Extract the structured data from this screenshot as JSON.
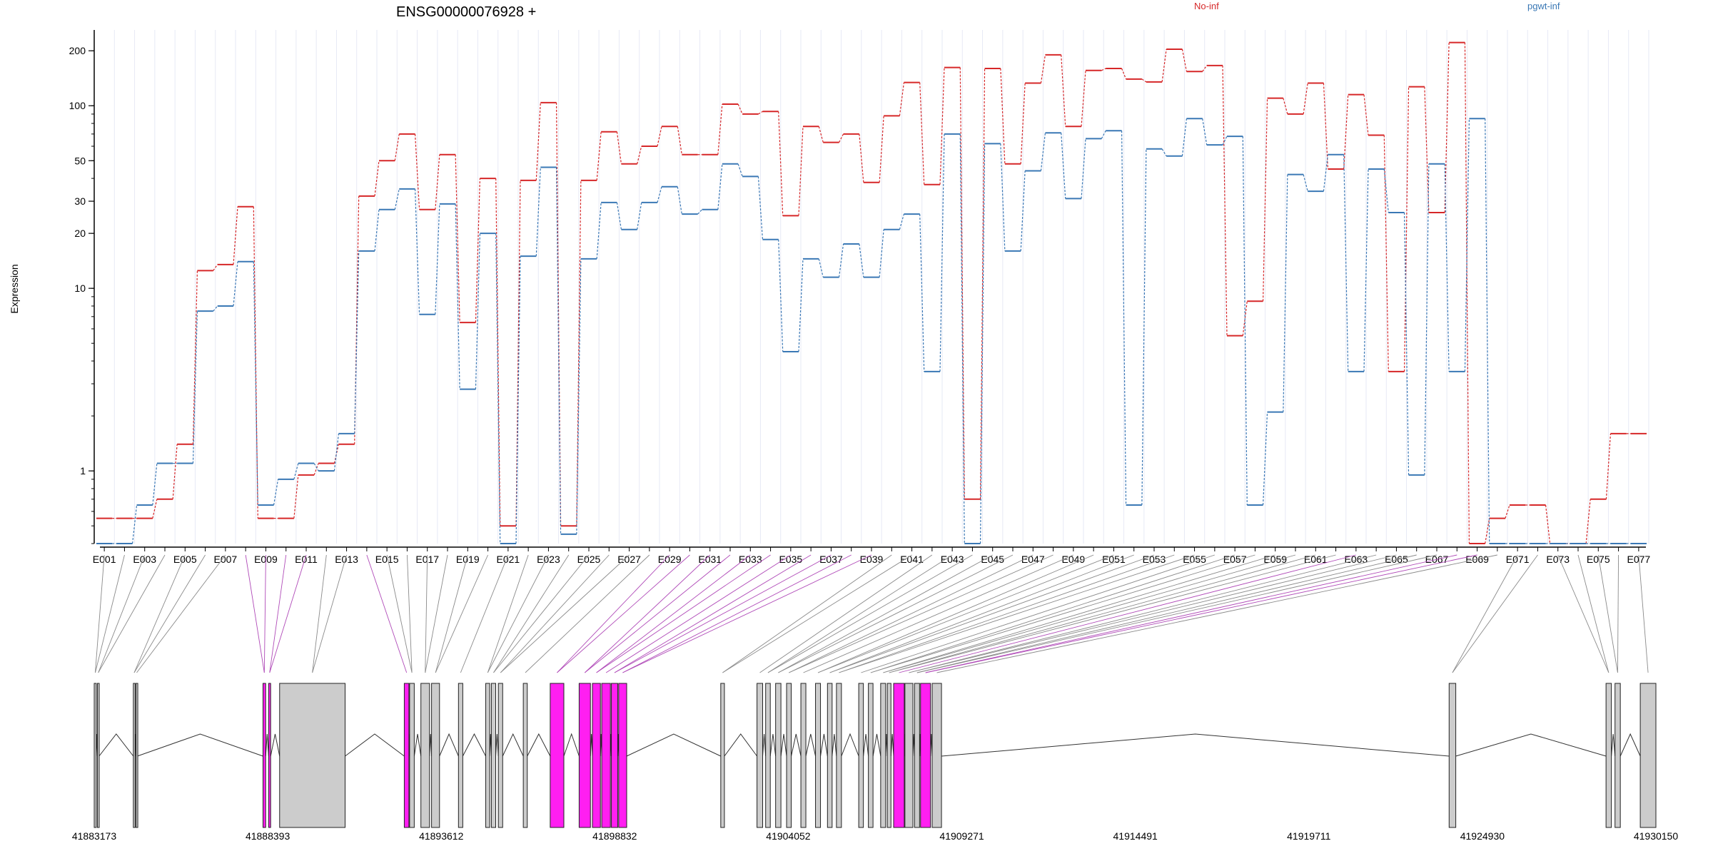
{
  "chart_data": {
    "type": "line",
    "title": "ENSG00000076928 +",
    "ylabel": "Expression",
    "yscale": "log",
    "ylim": [
      0.4,
      260
    ],
    "yticks": [
      1,
      10,
      20,
      30,
      50,
      100,
      200
    ],
    "grid": "vertical",
    "legend_position": "top",
    "categories": [
      "E001",
      "E002",
      "E003",
      "E004",
      "E005",
      "E006",
      "E007",
      "E008",
      "E009",
      "E010",
      "E011",
      "E012",
      "E013",
      "E014",
      "E015",
      "E016",
      "E017",
      "E018",
      "E019",
      "E020",
      "E021",
      "E022",
      "E023",
      "E024",
      "E025",
      "E026",
      "E027",
      "E028",
      "E029",
      "E030",
      "E031",
      "E032",
      "E033",
      "E034",
      "E035",
      "E036",
      "E037",
      "E038",
      "E039",
      "E040",
      "E041",
      "E042",
      "E043",
      "E044",
      "E045",
      "E046",
      "E047",
      "E048",
      "E049",
      "E050",
      "E051",
      "E052",
      "E053",
      "E054",
      "E055",
      "E056",
      "E057",
      "E058",
      "E059",
      "E060",
      "E061",
      "E062",
      "E063",
      "E064",
      "E065",
      "E066",
      "E067",
      "E068",
      "E069",
      "E070",
      "E071",
      "E072",
      "E073",
      "E074",
      "E075",
      "E076",
      "E077"
    ],
    "tick_labels": [
      "E001",
      "E003",
      "E005",
      "E007",
      "E009",
      "E011",
      "E013",
      "E015",
      "E017",
      "E019",
      "E021",
      "E023",
      "E025",
      "E027",
      "E029",
      "E031",
      "E033",
      "E035",
      "E037",
      "E039",
      "E041",
      "E043",
      "E045",
      "E047",
      "E049",
      "E051",
      "E053",
      "E055",
      "E057",
      "E059",
      "E061",
      "E063",
      "E065",
      "E067",
      "E069",
      "E071",
      "E073",
      "E075",
      "E077"
    ],
    "series": [
      {
        "name": "No-inf",
        "color": "#d62728",
        "values": [
          0.55,
          0.55,
          0.55,
          0.7,
          1.4,
          12.5,
          13.5,
          28,
          0.55,
          0.55,
          0.95,
          1.1,
          1.4,
          32,
          50,
          70,
          27,
          54,
          6.5,
          40,
          0.5,
          39,
          104,
          0.5,
          39,
          72,
          48,
          60,
          77,
          54,
          54,
          102,
          90,
          93,
          25,
          77,
          63,
          70,
          38,
          88,
          134,
          37,
          162,
          0.7,
          160,
          48,
          133,
          190,
          77,
          156,
          160,
          140,
          135,
          204,
          154,
          166,
          5.5,
          8.5,
          110,
          90,
          133,
          45,
          115,
          69,
          3.5,
          127,
          26,
          222,
          0.4,
          0.55,
          0.65,
          0.65,
          0.4,
          0.4,
          0.7,
          1.6,
          1.6
        ]
      },
      {
        "name": "pgwt-inf",
        "color": "#3a78b5",
        "values": [
          0.4,
          0.4,
          0.65,
          1.1,
          1.1,
          7.5,
          8,
          14,
          0.65,
          0.9,
          1.1,
          1.0,
          1.6,
          16,
          27,
          35,
          7.2,
          29,
          2.8,
          20,
          0.4,
          15,
          46,
          0.45,
          14.5,
          29.5,
          21,
          29.5,
          36,
          25.5,
          27,
          48,
          41,
          18.5,
          4.5,
          14.5,
          11.5,
          17.5,
          11.5,
          21,
          25.5,
          3.5,
          70,
          0.4,
          62,
          16,
          44,
          71,
          31,
          66,
          73,
          0.65,
          58,
          53,
          85,
          61,
          68,
          0.65,
          2.1,
          42,
          34,
          54,
          3.5,
          45,
          26,
          0.95,
          48,
          3.5,
          85,
          0.4,
          0.4,
          0.4,
          0.4,
          0.4,
          0.4,
          0.4,
          0.4
        ]
      }
    ]
  },
  "genomic_axis": {
    "ticks": [
      "41883173",
      "41888393",
      "41893612",
      "41898832",
      "41904052",
      "41909271",
      "41914491",
      "41919711",
      "41924930",
      "41930150"
    ],
    "start": 41883173,
    "end": 41930150
  },
  "exons": [
    [
      41883173,
      41883235,
      0
    ],
    [
      41883270,
      41883320,
      0
    ],
    [
      41884350,
      41884400,
      0
    ],
    [
      41884430,
      41884470,
      0
    ],
    [
      41888250,
      41888330,
      1
    ],
    [
      41888420,
      41888480,
      1
    ],
    [
      41888750,
      41890720,
      0
    ],
    [
      41892500,
      41892640,
      1
    ],
    [
      41892660,
      41892800,
      0
    ],
    [
      41893000,
      41893260,
      0
    ],
    [
      41893320,
      41893560,
      0
    ],
    [
      41894130,
      41894260,
      0
    ],
    [
      41894950,
      41895070,
      0
    ],
    [
      41895120,
      41895250,
      0
    ],
    [
      41895330,
      41895460,
      0
    ],
    [
      41896080,
      41896200,
      0
    ],
    [
      41896890,
      41897300,
      1
    ],
    [
      41897760,
      41898100,
      1
    ],
    [
      41898160,
      41898400,
      1
    ],
    [
      41898440,
      41898700,
      1
    ],
    [
      41898730,
      41898920,
      1
    ],
    [
      41898950,
      41899190,
      1
    ],
    [
      41902020,
      41902130,
      0
    ],
    [
      41903110,
      41903280,
      0
    ],
    [
      41903370,
      41903510,
      0
    ],
    [
      41903670,
      41903830,
      0
    ],
    [
      41904000,
      41904140,
      0
    ],
    [
      41904430,
      41904580,
      0
    ],
    [
      41904870,
      41905020,
      0
    ],
    [
      41905230,
      41905370,
      0
    ],
    [
      41905500,
      41905650,
      0
    ],
    [
      41906170,
      41906310,
      0
    ],
    [
      41906460,
      41906600,
      0
    ],
    [
      41906830,
      41906980,
      0
    ],
    [
      41907030,
      41907140,
      0
    ],
    [
      41907220,
      41907540,
      1
    ],
    [
      41907560,
      41907800,
      0
    ],
    [
      41907850,
      41908000,
      0
    ],
    [
      41908030,
      41908330,
      1
    ],
    [
      41908380,
      41908660,
      0
    ],
    [
      41923930,
      41924130,
      0
    ],
    [
      41928650,
      41928810,
      0
    ],
    [
      41928920,
      41929080,
      0
    ],
    [
      41929680,
      41930150,
      0
    ]
  ]
}
